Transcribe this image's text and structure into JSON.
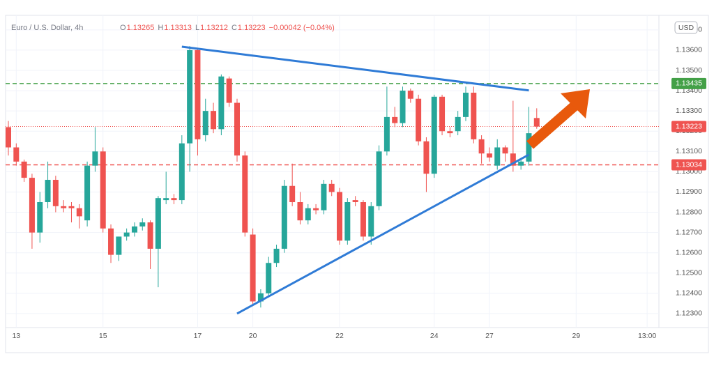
{
  "chart_data": {
    "type": "candlestick",
    "title": "Euro / U.S. Dollar, 4h",
    "ohlc_header": [
      {
        "key": "O",
        "value": "1.13265"
      },
      {
        "key": "H",
        "value": "1.13313"
      },
      {
        "key": "L",
        "value": "1.13212"
      },
      {
        "key": "C",
        "value": "1.13223"
      }
    ],
    "change": "−0.00042 (−0.04%)",
    "currency": "USD",
    "up_color": "#26a69a",
    "down_color": "#ef5350",
    "categories": [
      null,
      "13",
      null,
      null,
      null,
      null,
      null,
      null,
      null,
      null,
      null,
      null,
      "15",
      null,
      null,
      null,
      null,
      null,
      null,
      null,
      null,
      null,
      null,
      null,
      "17",
      null,
      null,
      null,
      null,
      null,
      null,
      "20",
      null,
      null,
      null,
      null,
      null,
      null,
      null,
      null,
      null,
      null,
      "22",
      null,
      null,
      null,
      null,
      null,
      null,
      null,
      null,
      null,
      null,
      null,
      "24",
      null,
      null,
      null,
      null,
      null,
      null,
      "27",
      null,
      null,
      null,
      null,
      null,
      null,
      null,
      null,
      null,
      null,
      "29",
      null,
      null,
      null,
      null,
      null,
      null,
      null,
      null,
      "13:00",
      null
    ],
    "open": [
      1.1322,
      1.1312,
      1.1305,
      1.1297,
      1.127,
      1.1285,
      1.1296,
      1.1283,
      1.1283,
      1.1282,
      1.1276,
      1.1303,
      1.131,
      1.1272,
      1.1259,
      1.1268,
      1.127,
      1.1273,
      1.1275,
      1.1262,
      1.1286,
      1.1287,
      1.1286,
      1.1314,
      1.136,
      1.1318,
      1.133,
      1.1321,
      1.1346,
      1.1334,
      1.1308,
      1.1269,
      1.1236,
      1.124,
      1.1255,
      1.1262,
      1.1293,
      1.1285,
      1.1276,
      1.1282,
      1.1281,
      1.1294,
      1.129,
      1.1266,
      1.1286,
      1.1285,
      1.1268,
      1.1283,
      1.131,
      1.1327,
      1.1324,
      1.134,
      1.1336,
      1.1315,
      1.1299,
      1.1337,
      1.132,
      1.132,
      1.1327,
      1.1339,
      1.1316,
      1.1309,
      1.1303,
      1.1312,
      1.1309,
      1.1303,
      1.1305,
      1.13265,
      null,
      null,
      null,
      null,
      null,
      null,
      null,
      null,
      null,
      null,
      null,
      null,
      null,
      null,
      null
    ],
    "high": [
      1.1325,
      1.1314,
      1.1306,
      1.1299,
      1.129,
      1.1305,
      1.1298,
      1.1286,
      1.1285,
      1.1284,
      1.1305,
      1.1322,
      1.1312,
      1.1274,
      1.1268,
      1.1272,
      1.1275,
      1.1277,
      1.1276,
      1.1288,
      1.13,
      1.1289,
      1.1318,
      1.1362,
      1.1361,
      1.1336,
      1.1334,
      1.1348,
      1.1347,
      1.1336,
      1.131,
      1.1272,
      1.1242,
      1.1258,
      1.1264,
      1.1296,
      1.1304,
      1.129,
      1.1284,
      1.1284,
      1.1296,
      1.1296,
      1.1292,
      1.1287,
      1.1288,
      1.1286,
      1.1285,
      1.1313,
      1.1342,
      1.1332,
      1.1342,
      1.1341,
      1.1338,
      1.1317,
      1.1338,
      1.1338,
      1.1322,
      1.133,
      1.1342,
      1.1342,
      1.1318,
      1.1312,
      1.1316,
      1.1313,
      1.1335,
      1.1306,
      1.1332,
      1.13313,
      null,
      null,
      null,
      null,
      null,
      null,
      null,
      null,
      null,
      null,
      null,
      null,
      null,
      null,
      null
    ],
    "low": [
      1.1308,
      1.1303,
      1.1295,
      1.1262,
      1.1265,
      1.1282,
      1.128,
      1.128,
      1.1275,
      1.1272,
      1.1273,
      1.13,
      1.127,
      1.1255,
      1.1256,
      1.1266,
      1.1268,
      1.1271,
      1.1252,
      1.1243,
      1.1284,
      1.1284,
      1.1284,
      1.13,
      1.1308,
      1.1315,
      1.1319,
      1.1318,
      1.1332,
      1.1305,
      1.1268,
      1.1234,
      1.1233,
      1.1238,
      1.1253,
      1.126,
      1.1283,
      1.1274,
      1.1274,
      1.1279,
      1.1279,
      1.1288,
      1.1264,
      1.1264,
      1.1283,
      1.1266,
      1.1264,
      1.1281,
      1.1308,
      1.1322,
      1.1322,
      1.1334,
      1.1313,
      1.129,
      1.1297,
      1.1318,
      1.1317,
      1.1318,
      1.1325,
      1.1314,
      1.1304,
      1.1305,
      1.1301,
      1.1305,
      1.13,
      1.1301,
      1.1303,
      1.13212,
      null,
      null,
      null,
      null,
      null,
      null,
      null,
      null,
      null,
      null,
      null,
      null,
      null,
      null,
      null
    ],
    "close": [
      1.1312,
      1.1305,
      1.1297,
      1.127,
      1.1285,
      1.1296,
      1.1283,
      1.1282,
      1.1282,
      1.1278,
      1.1303,
      1.131,
      1.1272,
      1.1259,
      1.1268,
      1.127,
      1.1273,
      1.1275,
      1.1262,
      1.1287,
      1.1287,
      1.1286,
      1.1314,
      1.136,
      1.1316,
      1.133,
      1.1321,
      1.1347,
      1.1334,
      1.1308,
      1.127,
      1.1236,
      1.124,
      1.1255,
      1.1262,
      1.1293,
      1.1285,
      1.1276,
      1.1282,
      1.1281,
      1.1294,
      1.129,
      1.1266,
      1.1285,
      1.1285,
      1.1268,
      1.1283,
      1.131,
      1.1327,
      1.1324,
      1.134,
      1.1336,
      1.1315,
      1.1299,
      1.1337,
      1.132,
      1.1319,
      1.1327,
      1.1339,
      1.1316,
      1.1309,
      1.1307,
      1.1312,
      1.1309,
      1.1303,
      1.1305,
      1.1319,
      1.13223,
      null,
      null,
      null,
      null,
      null,
      null,
      null,
      null,
      null,
      null,
      null,
      null,
      null,
      null,
      null
    ],
    "ylim": [
      1.12231,
      1.13751
    ],
    "yticks": [
      {
        "value": 1.123,
        "label": "1.12300"
      },
      {
        "value": 1.124,
        "label": "1.12400"
      },
      {
        "value": 1.125,
        "label": "1.12500"
      },
      {
        "value": 1.126,
        "label": "1.12600"
      },
      {
        "value": 1.127,
        "label": "1.12700"
      },
      {
        "value": 1.128,
        "label": "1.12800"
      },
      {
        "value": 1.129,
        "label": "1.12900"
      },
      {
        "value": 1.13,
        "label": "1.13000"
      },
      {
        "value": 1.131,
        "label": "1.13100"
      },
      {
        "value": 1.132,
        "label": "1.13200"
      },
      {
        "value": 1.133,
        "label": "1.13300"
      },
      {
        "value": 1.134,
        "label": "1.13400"
      },
      {
        "value": 1.135,
        "label": "1.13500"
      },
      {
        "value": 1.136,
        "label": "1.13600"
      },
      {
        "value": 1.137,
        "label": "1.13700"
      }
    ],
    "grid": true,
    "levels": [
      {
        "value": 1.13435,
        "color": "#43a047",
        "style": "dashed"
      },
      {
        "value": 1.13223,
        "color": "#ef5350",
        "style": "dotted"
      },
      {
        "value": 1.13034,
        "color": "#ef5350",
        "style": "dashed"
      }
    ],
    "trendlines": [
      {
        "x": [
          22,
          66
        ],
        "y": [
          1.13617,
          1.13401
        ],
        "color": "#2f7bd6"
      },
      {
        "x": [
          29,
          66
        ],
        "y": [
          1.123,
          1.13084
        ],
        "color": "#2f7bd6"
      }
    ]
  }
}
